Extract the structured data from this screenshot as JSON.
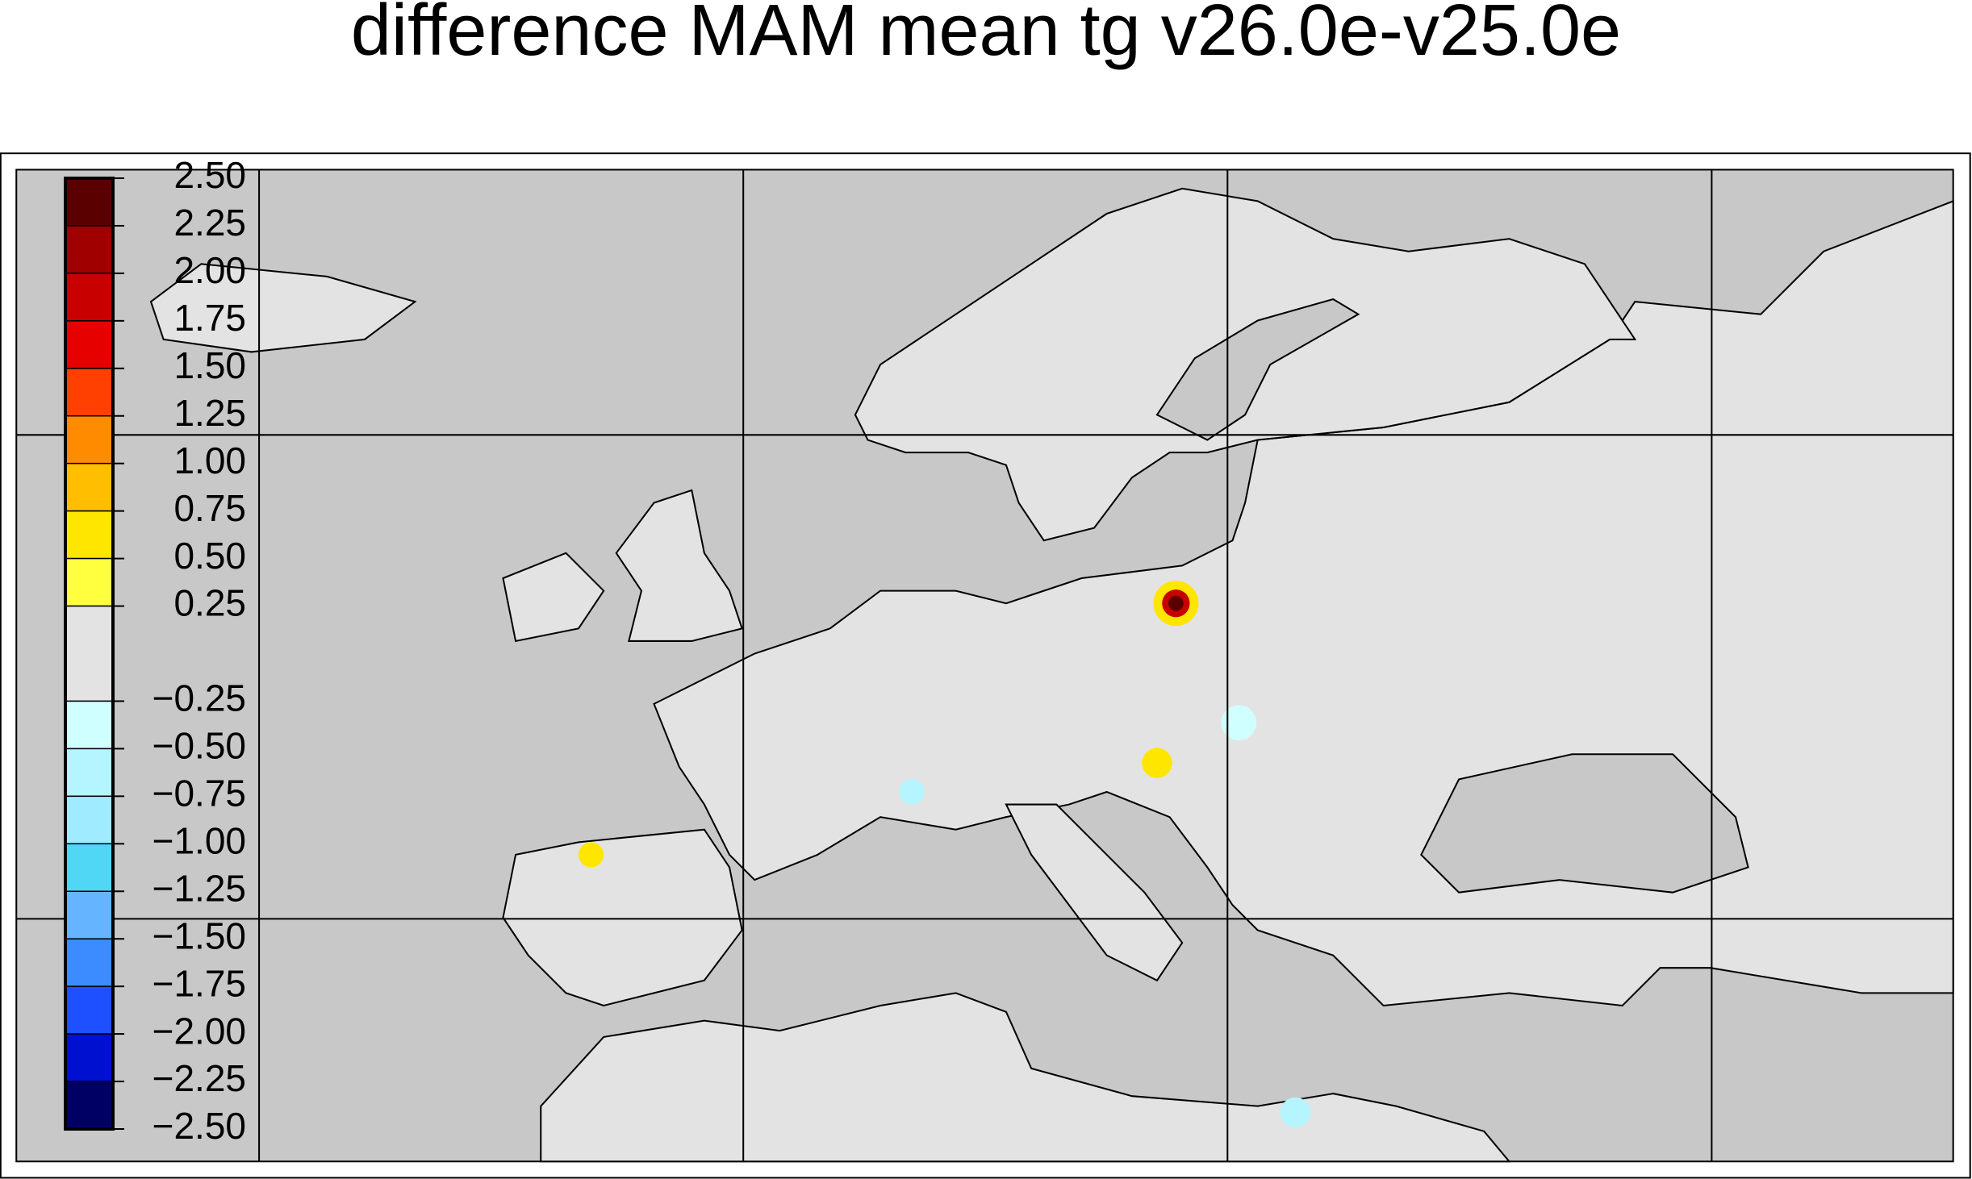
{
  "title": "difference MAM mean tg v26.0e-v25.0e",
  "colorbar": {
    "ticks": [
      {
        "value": 2.5,
        "label": "2.50"
      },
      {
        "value": 2.25,
        "label": "2.25"
      },
      {
        "value": 2.0,
        "label": "2.00"
      },
      {
        "value": 1.75,
        "label": "1.75"
      },
      {
        "value": 1.5,
        "label": "1.50"
      },
      {
        "value": 1.25,
        "label": "1.25"
      },
      {
        "value": 1.0,
        "label": "1.00"
      },
      {
        "value": 0.75,
        "label": "0.75"
      },
      {
        "value": 0.5,
        "label": "0.50"
      },
      {
        "value": 0.25,
        "label": "0.25"
      },
      {
        "value": -0.25,
        "label": "−0.25"
      },
      {
        "value": -0.5,
        "label": "−0.50"
      },
      {
        "value": -0.75,
        "label": "−0.75"
      },
      {
        "value": -1.0,
        "label": "−1.00"
      },
      {
        "value": -1.25,
        "label": "−1.25"
      },
      {
        "value": -1.5,
        "label": "−1.50"
      },
      {
        "value": -1.75,
        "label": "−1.75"
      },
      {
        "value": -2.0,
        "label": "−2.00"
      },
      {
        "value": -2.25,
        "label": "−2.25"
      },
      {
        "value": -2.5,
        "label": "−2.50"
      }
    ],
    "colors": [
      "#5a0000",
      "#a00000",
      "#c80000",
      "#e60000",
      "#ff4000",
      "#ff8c00",
      "#ffbe00",
      "#ffe600",
      "#ffff40",
      "#e3e3e3",
      "#d0ffff",
      "#b4f5ff",
      "#a0ebff",
      "#50d7f5",
      "#64b4ff",
      "#3c8cff",
      "#1e50ff",
      "#0010d0",
      "#000064"
    ]
  }
}
